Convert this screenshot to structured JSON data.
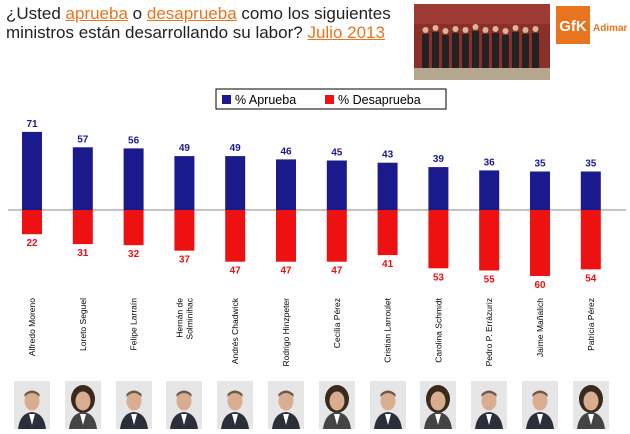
{
  "title": {
    "prefix": "¿Usted",
    "word_approve": "aprueba",
    "mid": "o",
    "word_disapprove": "desaprueba",
    "suffix": "como los siguientes ministros están desarrollando su labor?",
    "period": "Julio 2013"
  },
  "logo": {
    "brand": "GfK",
    "name": "Adimark",
    "color": "#e8741e"
  },
  "colors": {
    "approve": "#1a1a8c",
    "disapprove": "#ee1111",
    "approve_label": "#1a1a8c",
    "disapprove_label": "#ee1111"
  },
  "chart_data": {
    "type": "bar",
    "categories": [
      "Alfredo Moreno",
      "Loreto Seguel",
      "Felipe Larraín",
      "Hernán de Solminihac",
      "Andrés Chadwick",
      "Rodrigo Hinzpeter",
      "Cecilia Pérez",
      "Cristian Larroulet",
      "Carolina Schmidt",
      "Pedro P. Errázuriz",
      "Jaime Mañalich",
      "Patricia Pérez"
    ],
    "series": [
      {
        "name": "% Aprueba",
        "values": [
          71,
          57,
          56,
          49,
          49,
          46,
          45,
          43,
          39,
          36,
          35,
          35
        ]
      },
      {
        "name": "% Desaprueba",
        "values": [
          22,
          31,
          32,
          37,
          47,
          47,
          47,
          41,
          53,
          55,
          60,
          54
        ]
      }
    ],
    "legend": [
      "% Aprueba",
      "% Desaprueba"
    ],
    "legend_position": "top-center",
    "ylim": [
      -60,
      71
    ]
  }
}
